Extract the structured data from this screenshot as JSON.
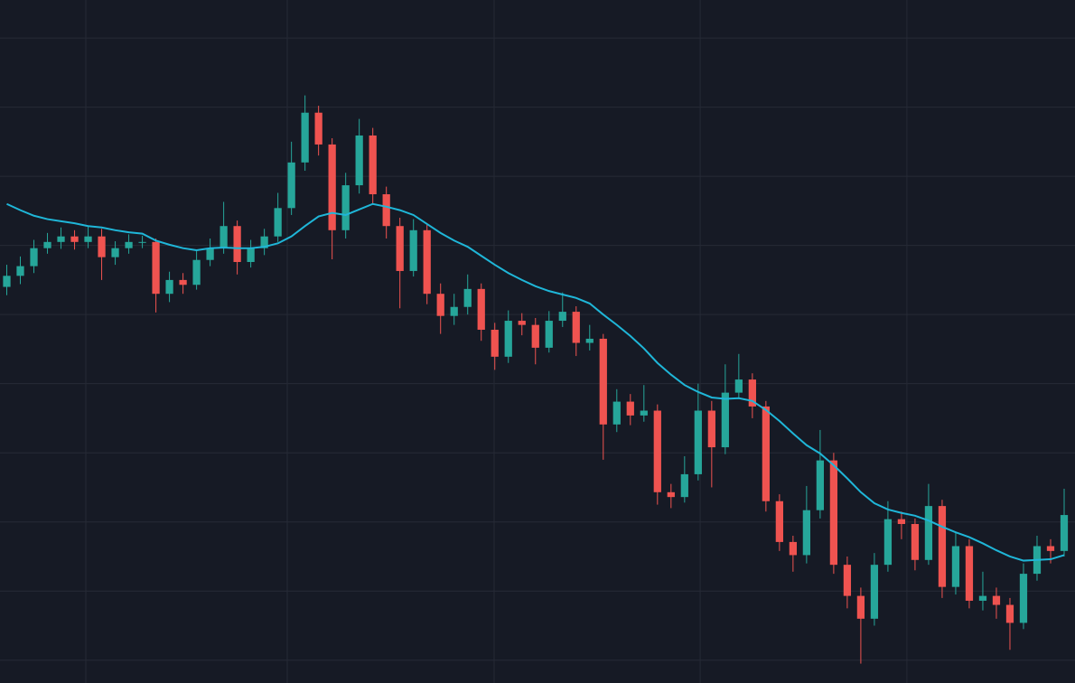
{
  "chart_data": {
    "type": "candlestick",
    "background": "#161a25",
    "grid": true,
    "grid_color": "#262a36",
    "up_color": "#26a69a",
    "down_color": "#ef5350",
    "xlim": [
      -0.5,
      78.8
    ],
    "xticks": [
      5.83,
      20.69,
      35.95,
      51.15,
      66.4
    ],
    "ylim": [
      0.67,
      10.55
    ],
    "yticks": [
      1,
      2,
      3,
      4,
      5,
      6,
      7,
      8,
      9,
      10
    ],
    "x": [
      0,
      1,
      2,
      3,
      4,
      5,
      6,
      7,
      8,
      9,
      10,
      11,
      12,
      13,
      14,
      15,
      16,
      17,
      18,
      19,
      20,
      21,
      22,
      23,
      24,
      25,
      26,
      27,
      28,
      29,
      30,
      31,
      32,
      33,
      34,
      35,
      36,
      37,
      38,
      39,
      40,
      41,
      42,
      43,
      44,
      45,
      46,
      47,
      48,
      49,
      50,
      51,
      52,
      53,
      54,
      55,
      56,
      57,
      58,
      59,
      60,
      61,
      62,
      63,
      64,
      65,
      66,
      67,
      68,
      69,
      70,
      71,
      72,
      73,
      74,
      75,
      76,
      77,
      78
    ],
    "open": [
      6.4,
      6.56,
      6.7,
      6.96,
      7.05,
      7.13,
      7.05,
      7.13,
      6.83,
      6.96,
      7.05,
      7.05,
      6.3,
      6.5,
      6.43,
      6.79,
      6.96,
      7.28,
      6.76,
      6.96,
      7.13,
      7.54,
      8.2,
      8.92,
      8.46,
      7.22,
      7.87,
      8.59,
      7.74,
      7.28,
      6.63,
      7.22,
      6.3,
      5.98,
      6.11,
      6.37,
      5.78,
      5.39,
      5.91,
      5.85,
      5.52,
      5.91,
      6.04,
      5.59,
      5.65,
      4.41,
      4.74,
      4.54,
      4.61,
      3.43,
      3.36,
      3.69,
      4.61,
      4.08,
      4.87,
      5.06,
      4.67,
      3.3,
      2.71,
      2.52,
      3.17,
      3.89,
      2.38,
      1.93,
      1.6,
      2.38,
      3.04,
      2.97,
      2.45,
      3.23,
      2.06,
      2.65,
      1.86,
      1.93,
      1.8,
      1.54,
      2.25,
      2.65,
      2.58
    ],
    "high": [
      6.72,
      6.84,
      7.08,
      7.18,
      7.26,
      7.22,
      7.28,
      7.24,
      7.06,
      7.16,
      7.14,
      7.1,
      6.62,
      6.6,
      6.92,
      7.1,
      7.63,
      7.36,
      7.08,
      7.24,
      7.76,
      8.5,
      9.17,
      9.02,
      8.55,
      8.05,
      8.83,
      8.7,
      7.85,
      7.4,
      7.38,
      7.3,
      6.45,
      6.3,
      6.58,
      6.45,
      5.88,
      6.06,
      6.02,
      5.95,
      6.05,
      6.32,
      6.12,
      5.85,
      5.72,
      4.92,
      4.85,
      4.98,
      4.7,
      3.55,
      3.95,
      5.0,
      4.75,
      5.28,
      5.43,
      5.15,
      4.75,
      3.4,
      2.8,
      3.52,
      4.33,
      4.0,
      2.5,
      2.05,
      2.55,
      3.3,
      3.15,
      3.05,
      3.55,
      3.32,
      2.85,
      2.75,
      2.28,
      2.05,
      1.9,
      2.4,
      2.8,
      2.75,
      3.48
    ],
    "low": [
      6.28,
      6.44,
      6.6,
      6.88,
      6.95,
      6.94,
      6.96,
      6.5,
      6.72,
      6.88,
      6.96,
      6.03,
      6.18,
      6.3,
      6.36,
      6.7,
      6.88,
      6.58,
      6.68,
      6.86,
      7.05,
      7.44,
      8.08,
      8.3,
      6.8,
      7.1,
      7.75,
      7.6,
      7.1,
      6.09,
      6.55,
      6.15,
      5.72,
      5.85,
      6.0,
      5.62,
      5.2,
      5.3,
      5.7,
      5.28,
      5.45,
      5.82,
      5.4,
      5.48,
      3.9,
      4.3,
      4.4,
      4.45,
      3.25,
      3.2,
      3.28,
      3.6,
      3.5,
      3.98,
      4.8,
      4.5,
      3.15,
      2.58,
      2.28,
      2.4,
      3.05,
      2.25,
      1.75,
      0.95,
      1.5,
      2.28,
      2.75,
      2.3,
      2.38,
      1.9,
      1.95,
      1.75,
      1.72,
      1.6,
      1.15,
      1.45,
      2.15,
      2.4,
      2.5
    ],
    "close": [
      6.56,
      6.7,
      6.96,
      7.05,
      7.13,
      7.05,
      7.13,
      6.83,
      6.96,
      7.05,
      7.05,
      6.3,
      6.5,
      6.43,
      6.79,
      6.96,
      7.28,
      6.76,
      6.96,
      7.13,
      7.54,
      8.2,
      8.92,
      8.46,
      7.22,
      7.87,
      8.59,
      7.74,
      7.28,
      6.63,
      7.22,
      6.3,
      5.98,
      6.11,
      6.37,
      5.78,
      5.39,
      5.91,
      5.85,
      5.52,
      5.91,
      6.04,
      5.59,
      5.65,
      4.41,
      4.74,
      4.54,
      4.61,
      3.43,
      3.36,
      3.69,
      4.61,
      4.08,
      4.87,
      5.06,
      4.67,
      3.3,
      2.71,
      2.52,
      3.17,
      3.89,
      2.38,
      1.93,
      1.6,
      2.38,
      3.04,
      2.97,
      2.45,
      3.23,
      2.06,
      2.65,
      1.86,
      1.93,
      1.8,
      1.54,
      2.25,
      2.65,
      2.58,
      3.1
    ],
    "moving_average": {
      "color": "#1fb6d8",
      "values": [
        7.6,
        7.51,
        7.43,
        7.38,
        7.35,
        7.32,
        7.28,
        7.26,
        7.22,
        7.19,
        7.17,
        7.07,
        7.01,
        6.96,
        6.93,
        6.96,
        6.97,
        6.96,
        6.96,
        6.98,
        7.03,
        7.13,
        7.28,
        7.42,
        7.47,
        7.44,
        7.52,
        7.6,
        7.56,
        7.51,
        7.44,
        7.31,
        7.18,
        7.07,
        6.98,
        6.85,
        6.72,
        6.6,
        6.5,
        6.41,
        6.34,
        6.29,
        6.24,
        6.16,
        6.0,
        5.85,
        5.69,
        5.51,
        5.3,
        5.13,
        4.98,
        4.88,
        4.8,
        4.78,
        4.79,
        4.75,
        4.62,
        4.46,
        4.28,
        4.11,
        3.99,
        3.82,
        3.63,
        3.43,
        3.27,
        3.18,
        3.13,
        3.09,
        3.02,
        2.93,
        2.85,
        2.78,
        2.69,
        2.59,
        2.5,
        2.44,
        2.45,
        2.46,
        2.52
      ]
    }
  }
}
